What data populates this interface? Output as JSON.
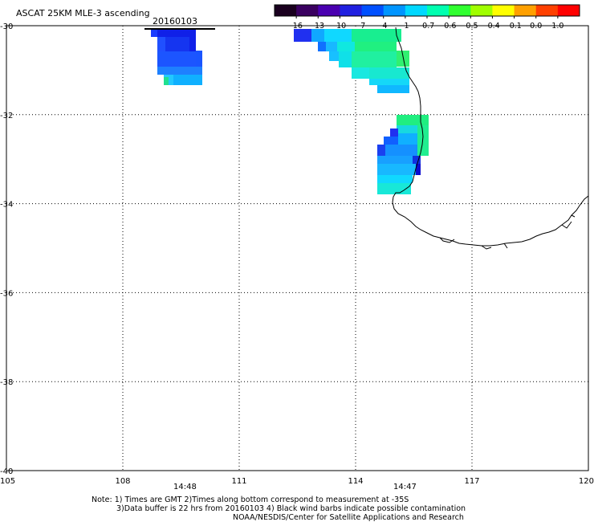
{
  "title": "ASCAT 25KM MLE-3 ascending",
  "date": "20160103",
  "colorbar": {
    "labels": [
      "-16",
      "-13",
      "-10",
      "-7",
      "-4",
      "-1",
      "-0.7",
      "-0.6",
      "-0.5",
      "-0.4",
      "-0.1",
      "0.0",
      "1.0"
    ],
    "colors": [
      "#1a001f",
      "#3a0060",
      "#4a00b0",
      "#2020e0",
      "#0050ff",
      "#0095ff",
      "#00d8ff",
      "#00ffb0",
      "#30ff30",
      "#a0ff00",
      "#ffff00",
      "#ffa000",
      "#ff4000",
      "#ff0000"
    ]
  },
  "axes": {
    "x_ticks": [
      "105",
      "108",
      "111",
      "114",
      "117",
      "120"
    ],
    "y_ticks": [
      "-30",
      "-32",
      "-34",
      "-36",
      "-38",
      "-40"
    ]
  },
  "pass_times": [
    "14:48",
    "14:47"
  ],
  "pass_time_color": "#d02000",
  "notes": [
    "Note: 1) Times are GMT 2)Times along bottom correspond to measurement at -35S",
    "3)Data buffer is 22 hrs from 20160103 4) Black wind barbs indicate possible contamination",
    "NOAA/NESDIS/Center for Satellite Applications and Research"
  ]
}
